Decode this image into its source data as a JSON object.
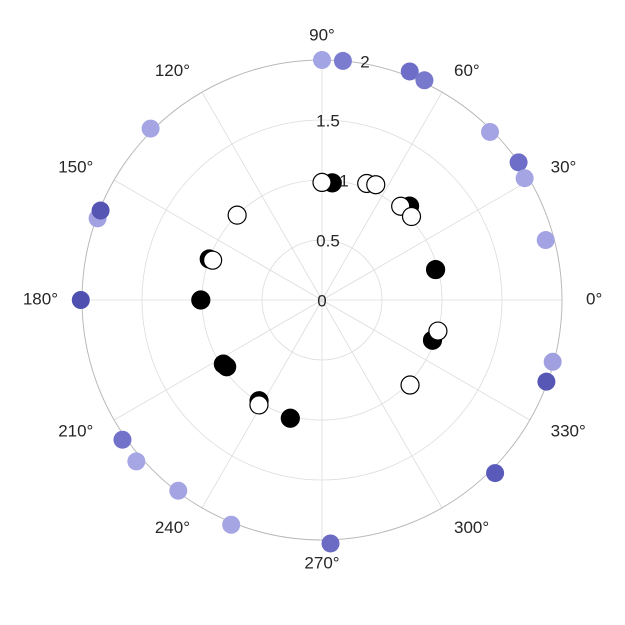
{
  "chart_data": {
    "type": "scatter",
    "coordinate_system": "polar",
    "title": "",
    "theta_unit": "degrees",
    "theta_ticks": [
      0,
      30,
      60,
      90,
      120,
      150,
      180,
      210,
      240,
      270,
      300,
      330
    ],
    "theta_tick_labels": [
      "0°",
      "30°",
      "60°",
      "90°",
      "120°",
      "150°",
      "180°",
      "210°",
      "240°",
      "270°",
      "300°",
      "330°"
    ],
    "r_range": [
      0,
      2
    ],
    "r_ticks": [
      0,
      0.5,
      1,
      1.5,
      2
    ],
    "r_tick_labels": [
      "0",
      "0.5",
      "1",
      "1.5",
      "2"
    ],
    "grid": true,
    "legend": "none",
    "series": [
      {
        "style": "outer-purple",
        "points": [
          {
            "theta": 90,
            "r": 2.0,
            "color": "#a3a4e3"
          },
          {
            "theta": 85,
            "r": 2.0,
            "color": "#7b7bd0"
          },
          {
            "theta": 69,
            "r": 2.04,
            "color": "#6e6ec8"
          },
          {
            "theta": 65,
            "r": 2.02,
            "color": "#7878cc"
          },
          {
            "theta": 45,
            "r": 1.98,
            "color": "#a4a4e4"
          },
          {
            "theta": 35,
            "r": 2.0,
            "color": "#6e6ec8"
          },
          {
            "theta": 31,
            "r": 1.97,
            "color": "#a5a5e4"
          },
          {
            "theta": 15,
            "r": 1.93,
            "color": "#a3a3e3"
          },
          {
            "theta": 345,
            "r": 1.99,
            "color": "#a0a0e0"
          },
          {
            "theta": 340,
            "r": 1.99,
            "color": "#5757b5"
          },
          {
            "theta": 315,
            "r": 2.04,
            "color": "#5a5aba"
          },
          {
            "theta": 272,
            "r": 2.03,
            "color": "#6b6bc4"
          },
          {
            "theta": 248,
            "r": 2.02,
            "color": "#a5a5e4"
          },
          {
            "theta": 233,
            "r": 1.99,
            "color": "#a4a4e3"
          },
          {
            "theta": 221,
            "r": 2.05,
            "color": "#a6a6e5"
          },
          {
            "theta": 215,
            "r": 2.03,
            "color": "#7272cb"
          },
          {
            "theta": 180,
            "r": 2.01,
            "color": "#5050b0"
          },
          {
            "theta": 160,
            "r": 1.99,
            "color": "#a2a2e2"
          },
          {
            "theta": 158,
            "r": 1.99,
            "color": "#5555b3"
          },
          {
            "theta": 135,
            "r": 2.02,
            "color": "#a5a5e4"
          }
        ]
      },
      {
        "style": "black",
        "points": [
          {
            "theta": 85,
            "r": 0.98,
            "color": "#000000"
          },
          {
            "theta": 47,
            "r": 1.07,
            "color": "#000000"
          },
          {
            "theta": 15,
            "r": 0.98,
            "color": "#000000"
          },
          {
            "theta": 340,
            "r": 0.98,
            "color": "#000000"
          },
          {
            "theta": 255,
            "r": 1.02,
            "color": "#000000"
          },
          {
            "theta": 238,
            "r": 0.99,
            "color": "#000000"
          },
          {
            "theta": 215,
            "r": 0.97,
            "color": "#000000"
          },
          {
            "theta": 213,
            "r": 0.98,
            "color": "#000000"
          },
          {
            "theta": 180,
            "r": 1.01,
            "color": "#000000"
          },
          {
            "theta": 160,
            "r": 1.0,
            "color": "#000000"
          }
        ]
      },
      {
        "style": "white",
        "points": [
          {
            "theta": 90,
            "r": 0.98,
            "color": "#ffffff"
          },
          {
            "theta": 69,
            "r": 1.04,
            "color": "#ffffff"
          },
          {
            "theta": 65,
            "r": 1.06,
            "color": "#ffffff"
          },
          {
            "theta": 50,
            "r": 1.02,
            "color": "#ffffff"
          },
          {
            "theta": 43,
            "r": 1.02,
            "color": "#ffffff"
          },
          {
            "theta": 345,
            "r": 1.0,
            "color": "#ffffff"
          },
          {
            "theta": 316,
            "r": 1.02,
            "color": "#ffffff"
          },
          {
            "theta": 239,
            "r": 1.02,
            "color": "#ffffff"
          },
          {
            "theta": 160,
            "r": 0.97,
            "color": "#ffffff"
          },
          {
            "theta": 135,
            "r": 1.0,
            "color": "#ffffff"
          }
        ]
      }
    ]
  }
}
